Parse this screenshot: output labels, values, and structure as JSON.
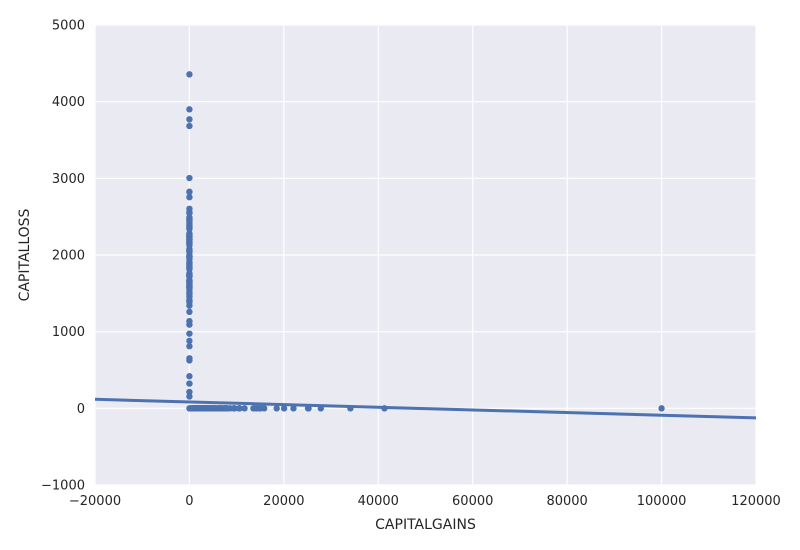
{
  "chart_data": {
    "type": "scatter",
    "title": "",
    "xlabel": "CAPITALGAINS",
    "ylabel": "CAPITALLOSS",
    "xlim": [
      -20000,
      120000
    ],
    "ylim": [
      -1000,
      5000
    ],
    "xticks": [
      -20000,
      0,
      20000,
      40000,
      60000,
      80000,
      100000,
      120000
    ],
    "yticks": [
      -1000,
      0,
      1000,
      2000,
      3000,
      4000,
      5000
    ],
    "grid": true,
    "background": "#eaeaf2",
    "grid_color": "#ffffff",
    "point_color": "#4c72b0",
    "line_color": "#4c72b0",
    "series": [
      {
        "type": "scatter",
        "points": [
          [
            0,
            4356
          ],
          [
            0,
            3900
          ],
          [
            0,
            3770
          ],
          [
            0,
            3683
          ],
          [
            0,
            3004
          ],
          [
            0,
            2824
          ],
          [
            0,
            2824
          ],
          [
            0,
            2754
          ],
          [
            0,
            2603
          ],
          [
            0,
            2559
          ],
          [
            0,
            2547
          ],
          [
            0,
            2489
          ],
          [
            0,
            2472
          ],
          [
            0,
            2457
          ],
          [
            0,
            2444
          ],
          [
            0,
            2415
          ],
          [
            0,
            2392
          ],
          [
            0,
            2377
          ],
          [
            0,
            2352
          ],
          [
            0,
            2339
          ],
          [
            0,
            2282
          ],
          [
            0,
            2267
          ],
          [
            0,
            2258
          ],
          [
            0,
            2246
          ],
          [
            0,
            2238
          ],
          [
            0,
            2231
          ],
          [
            0,
            2206
          ],
          [
            0,
            2205
          ],
          [
            0,
            2201
          ],
          [
            0,
            2179
          ],
          [
            0,
            2174
          ],
          [
            0,
            2163
          ],
          [
            0,
            2149
          ],
          [
            0,
            2129
          ],
          [
            0,
            2080
          ],
          [
            0,
            2057
          ],
          [
            0,
            2051
          ],
          [
            0,
            2042
          ],
          [
            0,
            2001
          ],
          [
            0,
            1980
          ],
          [
            0,
            1977
          ],
          [
            0,
            1974
          ],
          [
            0,
            1944
          ],
          [
            0,
            1902
          ],
          [
            0,
            1887
          ],
          [
            0,
            1876
          ],
          [
            0,
            1848
          ],
          [
            0,
            1844
          ],
          [
            0,
            1825
          ],
          [
            0,
            1816
          ],
          [
            0,
            1762
          ],
          [
            0,
            1741
          ],
          [
            0,
            1740
          ],
          [
            0,
            1735
          ],
          [
            0,
            1726
          ],
          [
            0,
            1721
          ],
          [
            0,
            1719
          ],
          [
            0,
            1672
          ],
          [
            0,
            1669
          ],
          [
            0,
            1668
          ],
          [
            0,
            1651
          ],
          [
            0,
            1648
          ],
          [
            0,
            1628
          ],
          [
            0,
            1617
          ],
          [
            0,
            1602
          ],
          [
            0,
            1594
          ],
          [
            0,
            1590
          ],
          [
            0,
            1579
          ],
          [
            0,
            1573
          ],
          [
            0,
            1564
          ],
          [
            0,
            1539
          ],
          [
            0,
            1504
          ],
          [
            0,
            1485
          ],
          [
            0,
            1455
          ],
          [
            0,
            1411
          ],
          [
            0,
            1408
          ],
          [
            0,
            1380
          ],
          [
            0,
            1340
          ],
          [
            0,
            1258
          ],
          [
            0,
            1138
          ],
          [
            0,
            1092
          ],
          [
            0,
            974
          ],
          [
            0,
            880
          ],
          [
            0,
            810
          ],
          [
            0,
            653
          ],
          [
            0,
            625
          ],
          [
            0,
            419
          ],
          [
            0,
            323
          ],
          [
            0,
            213
          ],
          [
            0,
            155
          ],
          [
            0,
            0
          ],
          [
            114,
            0
          ],
          [
            401,
            0
          ],
          [
            594,
            0
          ],
          [
            914,
            0
          ],
          [
            991,
            0
          ],
          [
            1055,
            0
          ],
          [
            1086,
            0
          ],
          [
            1151,
            0
          ],
          [
            1173,
            0
          ],
          [
            1409,
            0
          ],
          [
            1424,
            0
          ],
          [
            1455,
            0
          ],
          [
            1471,
            0
          ],
          [
            1506,
            0
          ],
          [
            1639,
            0
          ],
          [
            1797,
            0
          ],
          [
            1831,
            0
          ],
          [
            1848,
            0
          ],
          [
            2009,
            0
          ],
          [
            2036,
            0
          ],
          [
            2050,
            0
          ],
          [
            2062,
            0
          ],
          [
            2105,
            0
          ],
          [
            2174,
            0
          ],
          [
            2176,
            0
          ],
          [
            2202,
            0
          ],
          [
            2228,
            0
          ],
          [
            2290,
            0
          ],
          [
            2329,
            0
          ],
          [
            2346,
            0
          ],
          [
            2354,
            0
          ],
          [
            2387,
            0
          ],
          [
            2407,
            0
          ],
          [
            2414,
            0
          ],
          [
            2463,
            0
          ],
          [
            2538,
            0
          ],
          [
            2580,
            0
          ],
          [
            2597,
            0
          ],
          [
            2635,
            0
          ],
          [
            2653,
            0
          ],
          [
            2829,
            0
          ],
          [
            2885,
            0
          ],
          [
            2907,
            0
          ],
          [
            2936,
            0
          ],
          [
            2961,
            0
          ],
          [
            2964,
            0
          ],
          [
            2977,
            0
          ],
          [
            2993,
            0
          ],
          [
            3103,
            0
          ],
          [
            3137,
            0
          ],
          [
            3273,
            0
          ],
          [
            3325,
            0
          ],
          [
            3411,
            0
          ],
          [
            3418,
            0
          ],
          [
            3432,
            0
          ],
          [
            3456,
            0
          ],
          [
            3464,
            0
          ],
          [
            3471,
            0
          ],
          [
            3674,
            0
          ],
          [
            3781,
            0
          ],
          [
            3818,
            0
          ],
          [
            3887,
            0
          ],
          [
            3908,
            0
          ],
          [
            3942,
            0
          ],
          [
            4064,
            0
          ],
          [
            4101,
            0
          ],
          [
            4386,
            0
          ],
          [
            4416,
            0
          ],
          [
            4508,
            0
          ],
          [
            4650,
            0
          ],
          [
            4687,
            0
          ],
          [
            4787,
            0
          ],
          [
            4865,
            0
          ],
          [
            4931,
            0
          ],
          [
            4934,
            0
          ],
          [
            5013,
            0
          ],
          [
            5060,
            0
          ],
          [
            5178,
            0
          ],
          [
            5455,
            0
          ],
          [
            5556,
            0
          ],
          [
            5721,
            0
          ],
          [
            6097,
            0
          ],
          [
            6360,
            0
          ],
          [
            6418,
            0
          ],
          [
            6497,
            0
          ],
          [
            6514,
            0
          ],
          [
            6723,
            0
          ],
          [
            6767,
            0
          ],
          [
            6849,
            0
          ],
          [
            7298,
            0
          ],
          [
            7430,
            0
          ],
          [
            7443,
            0
          ],
          [
            7688,
            0
          ],
          [
            7896,
            0
          ],
          [
            7978,
            0
          ],
          [
            8614,
            0
          ],
          [
            9386,
            0
          ],
          [
            9562,
            0
          ],
          [
            10520,
            0
          ],
          [
            10566,
            0
          ],
          [
            10605,
            0
          ],
          [
            11678,
            0
          ],
          [
            13550,
            0
          ],
          [
            14084,
            0
          ],
          [
            14344,
            0
          ],
          [
            15020,
            0
          ],
          [
            15024,
            0
          ],
          [
            15831,
            0
          ],
          [
            18481,
            0
          ],
          [
            20051,
            0
          ],
          [
            22040,
            0
          ],
          [
            25124,
            0
          ],
          [
            25236,
            0
          ],
          [
            27828,
            0
          ],
          [
            34095,
            0
          ],
          [
            41310,
            0
          ],
          [
            99999,
            0
          ]
        ]
      },
      {
        "type": "line",
        "name": "",
        "x": [
          -20000,
          120000
        ],
        "y": [
          118,
          -125
        ]
      }
    ]
  }
}
